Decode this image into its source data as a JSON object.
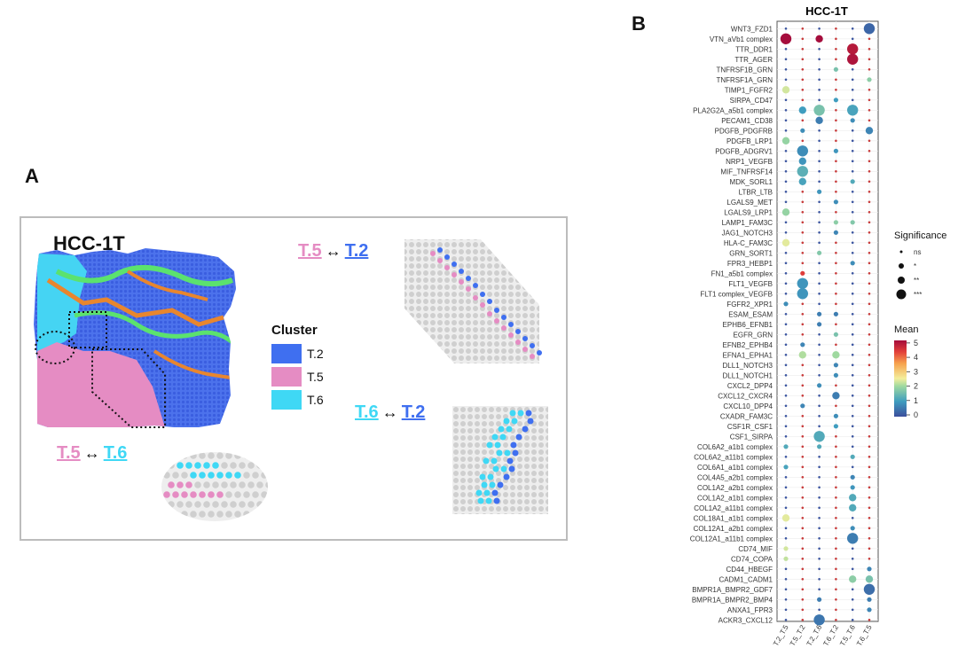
{
  "panel_a": {
    "letter": "A",
    "title": "HCC-1T",
    "pair1": {
      "left": "T.5",
      "arrow": "↔",
      "right": "T.2"
    },
    "pair2": {
      "left": "T.6",
      "arrow": "↔",
      "right": "T.2"
    },
    "pair3": {
      "left": "T.5",
      "arrow": "↔",
      "right": "T.6"
    },
    "legend_title": "Cluster",
    "clusters": [
      {
        "label": "T.2",
        "color": "#3f6ff0"
      },
      {
        "label": "T.5",
        "color": "#e58cc3"
      },
      {
        "label": "T.6",
        "color": "#3fd8f5"
      }
    ],
    "colors": {
      "T2_text": "#3f6ff0",
      "T5_text": "#e58cc3",
      "T6_text": "#3fd8f5",
      "grey": "#cfcfcf",
      "green": "#55e06a",
      "orange": "#e8862e"
    }
  },
  "panel_b": {
    "letter": "B",
    "title": "HCC-1T",
    "significance_title": "Significance",
    "significance_levels": [
      "ns",
      "*",
      "**",
      "***"
    ],
    "mean_title": "Mean",
    "mean_ticks": [
      "5",
      "4",
      "3",
      "2",
      "1",
      "0"
    ]
  },
  "chart_data": {
    "type": "scatter",
    "title": "HCC-1T",
    "x_categories": [
      "T.2_T.5",
      "T.5_T.2",
      "T.2_T.6",
      "T.6_T.2",
      "T.5_T.6",
      "T.6_T.5"
    ],
    "y_categories": [
      "WNT3_FZD1",
      "VTN_aVb1 complex",
      "TTR_DDR1",
      "TTR_AGER",
      "TNFRSF1B_GRN",
      "TNFRSF1A_GRN",
      "TIMP1_FGFR2",
      "SIRPA_CD47",
      "PLA2G2A_a5b1 complex",
      "PECAM1_CD38",
      "PDGFB_PDGFRB",
      "PDGFB_LRP1",
      "PDGFB_ADGRV1",
      "NRP1_VEGFB",
      "MIF_TNFRSF14",
      "MDK_SORL1",
      "LTBR_LTB",
      "LGALS9_MET",
      "LGALS9_LRP1",
      "LAMP1_FAM3C",
      "JAG1_NOTCH3",
      "HLA-C_FAM3C",
      "GRN_SORT1",
      "FPR3_HEBP1",
      "FN1_a5b1 complex",
      "FLT1_VEGFB",
      "FLT1 complex_VEGFB",
      "FGFR2_XPR1",
      "ESAM_ESAM",
      "EPHB6_EFNB1",
      "EGFR_GRN",
      "EFNB2_EPHB4",
      "EFNA1_EPHA1",
      "DLL1_NOTCH3",
      "DLL1_NOTCH1",
      "CXCL2_DPP4",
      "CXCL12_CXCR4",
      "CXCL10_DPP4",
      "CXADR_FAM3C",
      "CSF1R_CSF1",
      "CSF1_SIRPA",
      "COL6A2_a1b1 complex",
      "COL6A2_a11b1 complex",
      "COL6A1_a1b1 complex",
      "COL4A5_a2b1 complex",
      "COL1A2_a2b1 complex",
      "COL1A2_a1b1 complex",
      "COL1A2_a11b1 complex",
      "COL18A1_a1b1 complex",
      "COL12A1_a2b1 complex",
      "COL12A1_a11b1 complex",
      "CD74_MIF",
      "CD74_COPA",
      "CD44_HBEGF",
      "CADM1_CADM1",
      "BMPR1A_BMPR2_GDF7",
      "BMPR1A_BMPR2_BMP4",
      "ANXA1_FPR3",
      "ACKR3_CXCL12"
    ],
    "points": [
      {
        "y": "WNT3_FZD1",
        "x": "T.6_T.5",
        "sig": 3,
        "mean": 0.3
      },
      {
        "y": "VTN_aVb1 complex",
        "x": "T.2_T.5",
        "sig": 3,
        "mean": 5.0
      },
      {
        "y": "VTN_aVb1 complex",
        "x": "T.2_T.6",
        "sig": 2,
        "mean": 5.0
      },
      {
        "y": "TTR_DDR1",
        "x": "T.5_T.6",
        "sig": 3,
        "mean": 4.8
      },
      {
        "y": "TTR_AGER",
        "x": "T.5_T.6",
        "sig": 3,
        "mean": 4.9
      },
      {
        "y": "TNFRSF1B_GRN",
        "x": "T.6_T.2",
        "sig": 1,
        "mean": 1.6
      },
      {
        "y": "TNFRSF1A_GRN",
        "x": "T.6_T.5",
        "sig": 1,
        "mean": 1.8
      },
      {
        "y": "TIMP1_FGFR2",
        "x": "T.2_T.5",
        "sig": 2,
        "mean": 2.3
      },
      {
        "y": "SIRPA_CD47",
        "x": "T.6_T.2",
        "sig": 1,
        "mean": 1.0
      },
      {
        "y": "PLA2G2A_a5b1 complex",
        "x": "T.5_T.2",
        "sig": 2,
        "mean": 1.0
      },
      {
        "y": "PLA2G2A_a5b1 complex",
        "x": "T.2_T.6",
        "sig": 3,
        "mean": 1.6
      },
      {
        "y": "PLA2G2A_a5b1 complex",
        "x": "T.5_T.6",
        "sig": 3,
        "mean": 1.1
      },
      {
        "y": "PECAM1_CD38",
        "x": "T.2_T.6",
        "sig": 2,
        "mean": 0.6
      },
      {
        "y": "PECAM1_CD38",
        "x": "T.5_T.6",
        "sig": 1,
        "mean": 0.8
      },
      {
        "y": "PDGFB_PDGFRB",
        "x": "T.5_T.2",
        "sig": 1,
        "mean": 0.8
      },
      {
        "y": "PDGFB_PDGFRB",
        "x": "T.6_T.5",
        "sig": 2,
        "mean": 0.7
      },
      {
        "y": "PDGFB_LRP1",
        "x": "T.2_T.5",
        "sig": 2,
        "mean": 1.9
      },
      {
        "y": "PDGFB_ADGRV1",
        "x": "T.5_T.2",
        "sig": 3,
        "mean": 0.8
      },
      {
        "y": "PDGFB_ADGRV1",
        "x": "T.6_T.2",
        "sig": 1,
        "mean": 0.9
      },
      {
        "y": "NRP1_VEGFB",
        "x": "T.5_T.2",
        "sig": 2,
        "mean": 0.9
      },
      {
        "y": "MIF_TNFRSF14",
        "x": "T.5_T.2",
        "sig": 3,
        "mean": 1.3
      },
      {
        "y": "MDK_SORL1",
        "x": "T.5_T.2",
        "sig": 2,
        "mean": 1.1
      },
      {
        "y": "MDK_SORL1",
        "x": "T.5_T.6",
        "sig": 1,
        "mean": 1.2
      },
      {
        "y": "LTBR_LTB",
        "x": "T.2_T.6",
        "sig": 1,
        "mean": 0.9
      },
      {
        "y": "LGALS9_MET",
        "x": "T.6_T.2",
        "sig": 1,
        "mean": 0.8
      },
      {
        "y": "LGALS9_LRP1",
        "x": "T.2_T.5",
        "sig": 2,
        "mean": 1.9
      },
      {
        "y": "LAMP1_FAM3C",
        "x": "T.6_T.2",
        "sig": 1,
        "mean": 1.8
      },
      {
        "y": "LAMP1_FAM3C",
        "x": "T.5_T.6",
        "sig": 1,
        "mean": 1.7
      },
      {
        "y": "JAG1_NOTCH3",
        "x": "T.6_T.2",
        "sig": 1,
        "mean": 0.7
      },
      {
        "y": "HLA-C_FAM3C",
        "x": "T.2_T.5",
        "sig": 2,
        "mean": 2.4
      },
      {
        "y": "GRN_SORT1",
        "x": "T.2_T.6",
        "sig": 1,
        "mean": 1.7
      },
      {
        "y": "FPR3_HEBP1",
        "x": "T.5_T.6",
        "sig": 1,
        "mean": 0.8
      },
      {
        "y": "FN1_a5b1 complex",
        "x": "T.5_T.2",
        "sig": 1,
        "mean": 4.3
      },
      {
        "y": "FLT1_VEGFB",
        "x": "T.5_T.2",
        "sig": 3,
        "mean": 0.9
      },
      {
        "y": "FLT1 complex_VEGFB",
        "x": "T.5_T.2",
        "sig": 3,
        "mean": 0.9
      },
      {
        "y": "FGFR2_XPR1",
        "x": "T.2_T.5",
        "sig": 1,
        "mean": 0.8
      },
      {
        "y": "ESAM_ESAM",
        "x": "T.2_T.6",
        "sig": 1,
        "mean": 0.6
      },
      {
        "y": "ESAM_ESAM",
        "x": "T.6_T.2",
        "sig": 1,
        "mean": 0.6
      },
      {
        "y": "EPHB6_EFNB1",
        "x": "T.2_T.6",
        "sig": 1,
        "mean": 0.6
      },
      {
        "y": "EGFR_GRN",
        "x": "T.6_T.2",
        "sig": 1,
        "mean": 1.6
      },
      {
        "y": "EFNB2_EPHB4",
        "x": "T.5_T.2",
        "sig": 1,
        "mean": 0.7
      },
      {
        "y": "EFNA1_EPHA1",
        "x": "T.5_T.2",
        "sig": 2,
        "mean": 2.1
      },
      {
        "y": "EFNA1_EPHA1",
        "x": "T.6_T.2",
        "sig": 2,
        "mean": 2.0
      },
      {
        "y": "DLL1_NOTCH3",
        "x": "T.6_T.2",
        "sig": 1,
        "mean": 0.7
      },
      {
        "y": "DLL1_NOTCH1",
        "x": "T.6_T.2",
        "sig": 1,
        "mean": 0.8
      },
      {
        "y": "CXCL2_DPP4",
        "x": "T.2_T.6",
        "sig": 1,
        "mean": 0.8
      },
      {
        "y": "CXCL12_CXCR4",
        "x": "T.6_T.2",
        "sig": 2,
        "mean": 0.6
      },
      {
        "y": "CXCL10_DPP4",
        "x": "T.5_T.2",
        "sig": 1,
        "mean": 0.7
      },
      {
        "y": "CXADR_FAM3C",
        "x": "T.6_T.2",
        "sig": 1,
        "mean": 0.8
      },
      {
        "y": "CSF1R_CSF1",
        "x": "T.6_T.2",
        "sig": 1,
        "mean": 1.0
      },
      {
        "y": "CSF1_SIRPA",
        "x": "T.2_T.6",
        "sig": 3,
        "mean": 1.2
      },
      {
        "y": "COL6A2_a1b1 complex",
        "x": "T.2_T.5",
        "sig": 1,
        "mean": 1.2
      },
      {
        "y": "COL6A2_a1b1 complex",
        "x": "T.2_T.6",
        "sig": 1,
        "mean": 1.2
      },
      {
        "y": "COL6A2_a11b1 complex",
        "x": "T.5_T.6",
        "sig": 1,
        "mean": 1.2
      },
      {
        "y": "COL6A1_a1b1 complex",
        "x": "T.2_T.5",
        "sig": 1,
        "mean": 1.1
      },
      {
        "y": "COL4A5_a2b1 complex",
        "x": "T.5_T.6",
        "sig": 1,
        "mean": 0.7
      },
      {
        "y": "COL1A2_a2b1 complex",
        "x": "T.5_T.6",
        "sig": 1,
        "mean": 0.9
      },
      {
        "y": "COL1A2_a1b1 complex",
        "x": "T.5_T.6",
        "sig": 2,
        "mean": 1.2
      },
      {
        "y": "COL1A2_a11b1 complex",
        "x": "T.5_T.6",
        "sig": 2,
        "mean": 1.2
      },
      {
        "y": "COL18A1_a1b1 complex",
        "x": "T.2_T.5",
        "sig": 2,
        "mean": 2.4
      },
      {
        "y": "COL12A1_a2b1 complex",
        "x": "T.5_T.6",
        "sig": 1,
        "mean": 0.8
      },
      {
        "y": "COL12A1_a11b1 complex",
        "x": "T.5_T.6",
        "sig": 3,
        "mean": 0.6
      },
      {
        "y": "CD74_MIF",
        "x": "T.2_T.5",
        "sig": 1,
        "mean": 2.3
      },
      {
        "y": "CD74_COPA",
        "x": "T.2_T.5",
        "sig": 1,
        "mean": 2.2
      },
      {
        "y": "CD44_HBEGF",
        "x": "T.6_T.5",
        "sig": 1,
        "mean": 0.7
      },
      {
        "y": "CADM1_CADM1",
        "x": "T.5_T.6",
        "sig": 2,
        "mean": 1.8
      },
      {
        "y": "CADM1_CADM1",
        "x": "T.6_T.5",
        "sig": 2,
        "mean": 1.6
      },
      {
        "y": "BMPR1A_BMPR2_GDF7",
        "x": "T.6_T.5",
        "sig": 3,
        "mean": 0.4
      },
      {
        "y": "BMPR1A_BMPR2_BMP4",
        "x": "T.2_T.6",
        "sig": 1,
        "mean": 0.6
      },
      {
        "y": "BMPR1A_BMPR2_BMP4",
        "x": "T.6_T.5",
        "sig": 1,
        "mean": 0.6
      },
      {
        "y": "ANXA1_FPR3",
        "x": "T.6_T.5",
        "sig": 1,
        "mean": 0.7
      },
      {
        "y": "ACKR3_CXCL12",
        "x": "T.2_T.6",
        "sig": 3,
        "mean": 0.5
      }
    ],
    "background_point": {
      "sig": 0,
      "mean": 0.2
    },
    "legend": {
      "size": "Significance",
      "color": "Mean",
      "color_range": [
        0,
        5
      ]
    }
  }
}
